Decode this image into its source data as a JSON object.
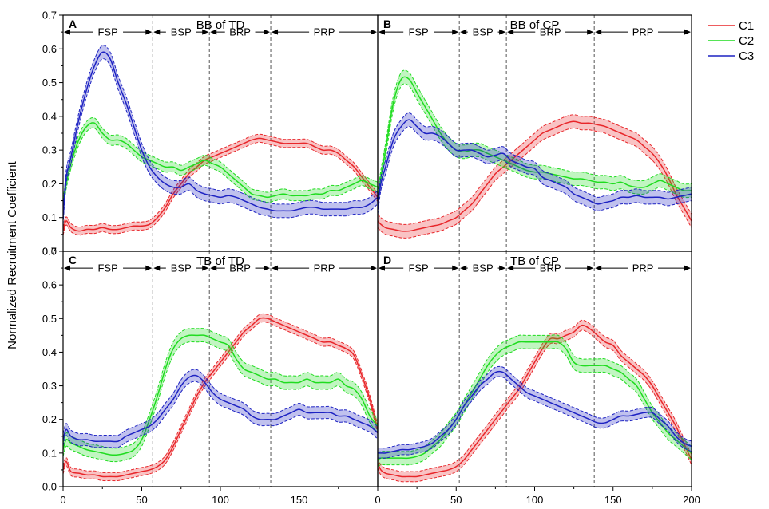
{
  "chart_data": {
    "type": "line",
    "ylabel": "Normalized Recruitment Coefficient",
    "xlim": [
      0,
      200
    ],
    "ylim": [
      0,
      0.7
    ],
    "x_ticks": [
      0,
      50,
      100,
      150,
      200
    ],
    "y_ticks": [
      0.0,
      0.1,
      0.2,
      0.3,
      0.4,
      0.5,
      0.6,
      0.7
    ],
    "y_tick_labels": [
      "0.0",
      "0.1",
      "0.2",
      "0.3",
      "0.4",
      "0.5",
      "0.6",
      "0.7"
    ],
    "x_tick_labels_left": [
      "0",
      "50",
      "100",
      "150"
    ],
    "x_tick_labels_right": [
      "0",
      "50",
      "100",
      "150",
      "200"
    ],
    "legend": [
      {
        "name": "C1",
        "color": "#e8262a"
      },
      {
        "name": "C2",
        "color": "#1fdc1f"
      },
      {
        "name": "C3",
        "color": "#1d22c2"
      }
    ],
    "panels": [
      {
        "letter": "A",
        "title": "BB of TD",
        "phase_bounds": [
          57,
          93,
          132
        ],
        "phases": [
          {
            "label": "FSP",
            "from": 0,
            "to": 57
          },
          {
            "label": "BSP",
            "from": 57,
            "to": 93
          },
          {
            "label": "BRP",
            "from": 93,
            "to": 132
          },
          {
            "label": "PRP",
            "from": 132,
            "to": 200
          }
        ],
        "x": [
          0,
          2,
          5,
          10,
          15,
          20,
          25,
          30,
          35,
          40,
          45,
          50,
          55,
          60,
          65,
          70,
          75,
          80,
          85,
          90,
          95,
          100,
          105,
          110,
          115,
          120,
          125,
          130,
          135,
          140,
          145,
          150,
          155,
          160,
          165,
          170,
          175,
          180,
          185,
          190,
          195,
          200
        ],
        "series": [
          {
            "name": "C1",
            "band": 0.012,
            "values": [
              0.06,
              0.09,
              0.07,
              0.06,
              0.065,
              0.065,
              0.07,
              0.065,
              0.065,
              0.07,
              0.075,
              0.075,
              0.08,
              0.1,
              0.13,
              0.17,
              0.2,
              0.23,
              0.25,
              0.27,
              0.28,
              0.29,
              0.3,
              0.31,
              0.32,
              0.33,
              0.335,
              0.33,
              0.325,
              0.32,
              0.32,
              0.32,
              0.32,
              0.31,
              0.3,
              0.3,
              0.29,
              0.27,
              0.25,
              0.22,
              0.19,
              0.16
            ]
          },
          {
            "name": "C2",
            "band": 0.015,
            "values": [
              0.14,
              0.2,
              0.26,
              0.33,
              0.37,
              0.38,
              0.35,
              0.33,
              0.33,
              0.32,
              0.3,
              0.28,
              0.27,
              0.26,
              0.25,
              0.25,
              0.24,
              0.25,
              0.26,
              0.27,
              0.26,
              0.25,
              0.23,
              0.21,
              0.19,
              0.17,
              0.165,
              0.16,
              0.165,
              0.17,
              0.165,
              0.165,
              0.165,
              0.17,
              0.17,
              0.18,
              0.18,
              0.19,
              0.2,
              0.21,
              0.2,
              0.19
            ]
          },
          {
            "name": "C3",
            "band": 0.02,
            "values": [
              0.1,
              0.22,
              0.28,
              0.39,
              0.48,
              0.55,
              0.59,
              0.57,
              0.5,
              0.44,
              0.37,
              0.3,
              0.25,
              0.22,
              0.2,
              0.19,
              0.19,
              0.2,
              0.18,
              0.17,
              0.165,
              0.16,
              0.165,
              0.16,
              0.15,
              0.14,
              0.13,
              0.125,
              0.12,
              0.12,
              0.12,
              0.125,
              0.13,
              0.13,
              0.125,
              0.125,
              0.125,
              0.125,
              0.13,
              0.13,
              0.14,
              0.16
            ]
          }
        ]
      },
      {
        "letter": "B",
        "title": "BB of CP",
        "phase_bounds": [
          52,
          82,
          138
        ],
        "phases": [
          {
            "label": "FSP",
            "from": 0,
            "to": 52
          },
          {
            "label": "BSP",
            "from": 52,
            "to": 82
          },
          {
            "label": "BRP",
            "from": 82,
            "to": 138
          },
          {
            "label": "PRP",
            "from": 138,
            "to": 200
          }
        ],
        "x": [
          0,
          2,
          5,
          10,
          15,
          20,
          25,
          30,
          35,
          40,
          45,
          50,
          55,
          60,
          65,
          70,
          75,
          80,
          85,
          90,
          95,
          100,
          105,
          110,
          115,
          120,
          125,
          130,
          135,
          140,
          145,
          150,
          155,
          160,
          165,
          170,
          175,
          180,
          185,
          190,
          195,
          200
        ],
        "series": [
          {
            "name": "C1",
            "band": 0.02,
            "values": [
              0.09,
              0.08,
              0.07,
              0.065,
              0.06,
              0.06,
              0.065,
              0.07,
              0.075,
              0.08,
              0.09,
              0.1,
              0.12,
              0.14,
              0.17,
              0.2,
              0.23,
              0.25,
              0.27,
              0.29,
              0.31,
              0.33,
              0.35,
              0.36,
              0.37,
              0.38,
              0.385,
              0.38,
              0.38,
              0.375,
              0.37,
              0.36,
              0.35,
              0.34,
              0.33,
              0.31,
              0.29,
              0.26,
              0.22,
              0.17,
              0.13,
              0.09
            ]
          },
          {
            "name": "C2",
            "band": 0.02,
            "values": [
              0.15,
              0.22,
              0.3,
              0.44,
              0.51,
              0.51,
              0.47,
              0.43,
              0.39,
              0.35,
              0.32,
              0.3,
              0.295,
              0.3,
              0.3,
              0.29,
              0.28,
              0.27,
              0.26,
              0.25,
              0.24,
              0.235,
              0.235,
              0.23,
              0.225,
              0.22,
              0.215,
              0.215,
              0.21,
              0.205,
              0.205,
              0.2,
              0.205,
              0.195,
              0.19,
              0.19,
              0.2,
              0.21,
              0.2,
              0.19,
              0.18,
              0.18
            ]
          },
          {
            "name": "C3",
            "band": 0.02,
            "values": [
              0.13,
              0.2,
              0.25,
              0.33,
              0.37,
              0.39,
              0.37,
              0.35,
              0.35,
              0.34,
              0.32,
              0.3,
              0.3,
              0.3,
              0.29,
              0.28,
              0.285,
              0.29,
              0.27,
              0.26,
              0.25,
              0.245,
              0.22,
              0.21,
              0.2,
              0.19,
              0.17,
              0.16,
              0.15,
              0.14,
              0.145,
              0.15,
              0.16,
              0.16,
              0.165,
              0.16,
              0.16,
              0.16,
              0.155,
              0.16,
              0.165,
              0.17
            ]
          }
        ]
      },
      {
        "letter": "C",
        "title": "TB of TD",
        "phase_bounds": [
          57,
          93,
          132
        ],
        "phases": [
          {
            "label": "FSP",
            "from": 0,
            "to": 57
          },
          {
            "label": "BSP",
            "from": 57,
            "to": 93
          },
          {
            "label": "BRP",
            "from": 93,
            "to": 132
          },
          {
            "label": "PRP",
            "from": 132,
            "to": 200
          }
        ],
        "x": [
          0,
          2,
          5,
          10,
          15,
          20,
          25,
          30,
          35,
          40,
          45,
          50,
          55,
          60,
          65,
          70,
          75,
          80,
          85,
          90,
          95,
          100,
          105,
          110,
          115,
          120,
          125,
          130,
          135,
          140,
          145,
          150,
          155,
          160,
          165,
          170,
          175,
          180,
          185,
          190,
          195,
          200
        ],
        "series": [
          {
            "name": "C1",
            "band": 0.012,
            "values": [
              0.05,
              0.075,
              0.045,
              0.04,
              0.035,
              0.035,
              0.03,
              0.03,
              0.03,
              0.035,
              0.04,
              0.045,
              0.05,
              0.06,
              0.08,
              0.12,
              0.17,
              0.22,
              0.27,
              0.31,
              0.34,
              0.37,
              0.4,
              0.43,
              0.46,
              0.48,
              0.5,
              0.5,
              0.49,
              0.48,
              0.47,
              0.46,
              0.45,
              0.44,
              0.43,
              0.43,
              0.42,
              0.41,
              0.39,
              0.33,
              0.26,
              0.17
            ]
          },
          {
            "name": "C2",
            "band": 0.02,
            "values": [
              0.11,
              0.14,
              0.13,
              0.12,
              0.11,
              0.105,
              0.1,
              0.095,
              0.095,
              0.1,
              0.11,
              0.14,
              0.2,
              0.27,
              0.35,
              0.41,
              0.44,
              0.45,
              0.45,
              0.45,
              0.44,
              0.43,
              0.42,
              0.38,
              0.35,
              0.34,
              0.33,
              0.32,
              0.32,
              0.31,
              0.31,
              0.31,
              0.32,
              0.31,
              0.31,
              0.31,
              0.32,
              0.3,
              0.29,
              0.26,
              0.21,
              0.18
            ]
          },
          {
            "name": "C3",
            "band": 0.018,
            "values": [
              0.14,
              0.17,
              0.15,
              0.14,
              0.14,
              0.135,
              0.135,
              0.135,
              0.135,
              0.15,
              0.16,
              0.17,
              0.18,
              0.2,
              0.23,
              0.26,
              0.3,
              0.325,
              0.33,
              0.31,
              0.28,
              0.26,
              0.25,
              0.24,
              0.23,
              0.21,
              0.2,
              0.2,
              0.2,
              0.21,
              0.22,
              0.23,
              0.22,
              0.22,
              0.22,
              0.22,
              0.21,
              0.21,
              0.2,
              0.19,
              0.18,
              0.16
            ]
          }
        ]
      },
      {
        "letter": "D",
        "title": "TB of CP",
        "phase_bounds": [
          52,
          82,
          138
        ],
        "phases": [
          {
            "label": "FSP",
            "from": 0,
            "to": 52
          },
          {
            "label": "BSP",
            "from": 52,
            "to": 82
          },
          {
            "label": "BRP",
            "from": 82,
            "to": 138
          },
          {
            "label": "PRP",
            "from": 138,
            "to": 200
          }
        ],
        "x": [
          0,
          2,
          5,
          10,
          15,
          20,
          25,
          30,
          35,
          40,
          45,
          50,
          55,
          60,
          65,
          70,
          75,
          80,
          85,
          90,
          95,
          100,
          105,
          110,
          115,
          120,
          125,
          130,
          135,
          140,
          145,
          150,
          155,
          160,
          165,
          170,
          175,
          180,
          185,
          190,
          195,
          200
        ],
        "series": [
          {
            "name": "C1",
            "band": 0.015,
            "values": [
              0.07,
              0.05,
              0.04,
              0.035,
              0.03,
              0.03,
              0.03,
              0.035,
              0.04,
              0.045,
              0.05,
              0.06,
              0.08,
              0.11,
              0.14,
              0.17,
              0.2,
              0.23,
              0.26,
              0.29,
              0.33,
              0.37,
              0.41,
              0.44,
              0.44,
              0.45,
              0.46,
              0.48,
              0.47,
              0.45,
              0.43,
              0.42,
              0.39,
              0.37,
              0.35,
              0.33,
              0.3,
              0.26,
              0.22,
              0.18,
              0.13,
              0.08
            ]
          },
          {
            "name": "C2",
            "band": 0.02,
            "values": [
              0.08,
              0.085,
              0.085,
              0.085,
              0.085,
              0.085,
              0.09,
              0.1,
              0.12,
              0.14,
              0.17,
              0.2,
              0.24,
              0.28,
              0.32,
              0.36,
              0.39,
              0.41,
              0.42,
              0.43,
              0.43,
              0.43,
              0.43,
              0.43,
              0.43,
              0.41,
              0.37,
              0.36,
              0.36,
              0.36,
              0.36,
              0.35,
              0.34,
              0.32,
              0.3,
              0.26,
              0.22,
              0.19,
              0.16,
              0.14,
              0.12,
              0.1
            ]
          },
          {
            "name": "C3",
            "band": 0.015,
            "values": [
              0.1,
              0.1,
              0.1,
              0.105,
              0.11,
              0.11,
              0.115,
              0.12,
              0.13,
              0.15,
              0.17,
              0.2,
              0.24,
              0.27,
              0.3,
              0.32,
              0.34,
              0.34,
              0.32,
              0.3,
              0.28,
              0.27,
              0.26,
              0.25,
              0.24,
              0.23,
              0.22,
              0.21,
              0.2,
              0.19,
              0.19,
              0.2,
              0.21,
              0.21,
              0.215,
              0.22,
              0.22,
              0.2,
              0.18,
              0.15,
              0.13,
              0.12
            ]
          }
        ]
      }
    ]
  }
}
